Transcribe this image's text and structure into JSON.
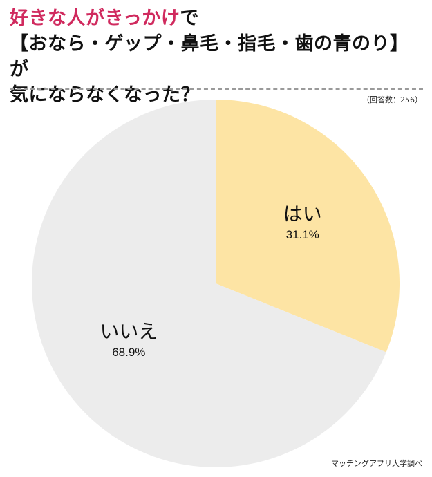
{
  "title": {
    "line1_highlight": "好きな人がきっかけ",
    "line1_rest": "で",
    "line2": "【おなら・ゲップ・鼻毛・指毛・歯の青のり】が",
    "line3": "気にならなくなった？"
  },
  "response_count": "（回答数：256）",
  "source": "マッチングアプリ大学調べ",
  "chart_data": {
    "type": "pie",
    "slices": [
      {
        "label": "はい",
        "value": 31.1,
        "value_label": "31.1%",
        "color": "#fde4a4"
      },
      {
        "label": "いいえ",
        "value": 68.9,
        "value_label": "68.9%",
        "color": "#ececec"
      }
    ],
    "start_angle": "12 o'clock",
    "direction": "clockwise"
  }
}
